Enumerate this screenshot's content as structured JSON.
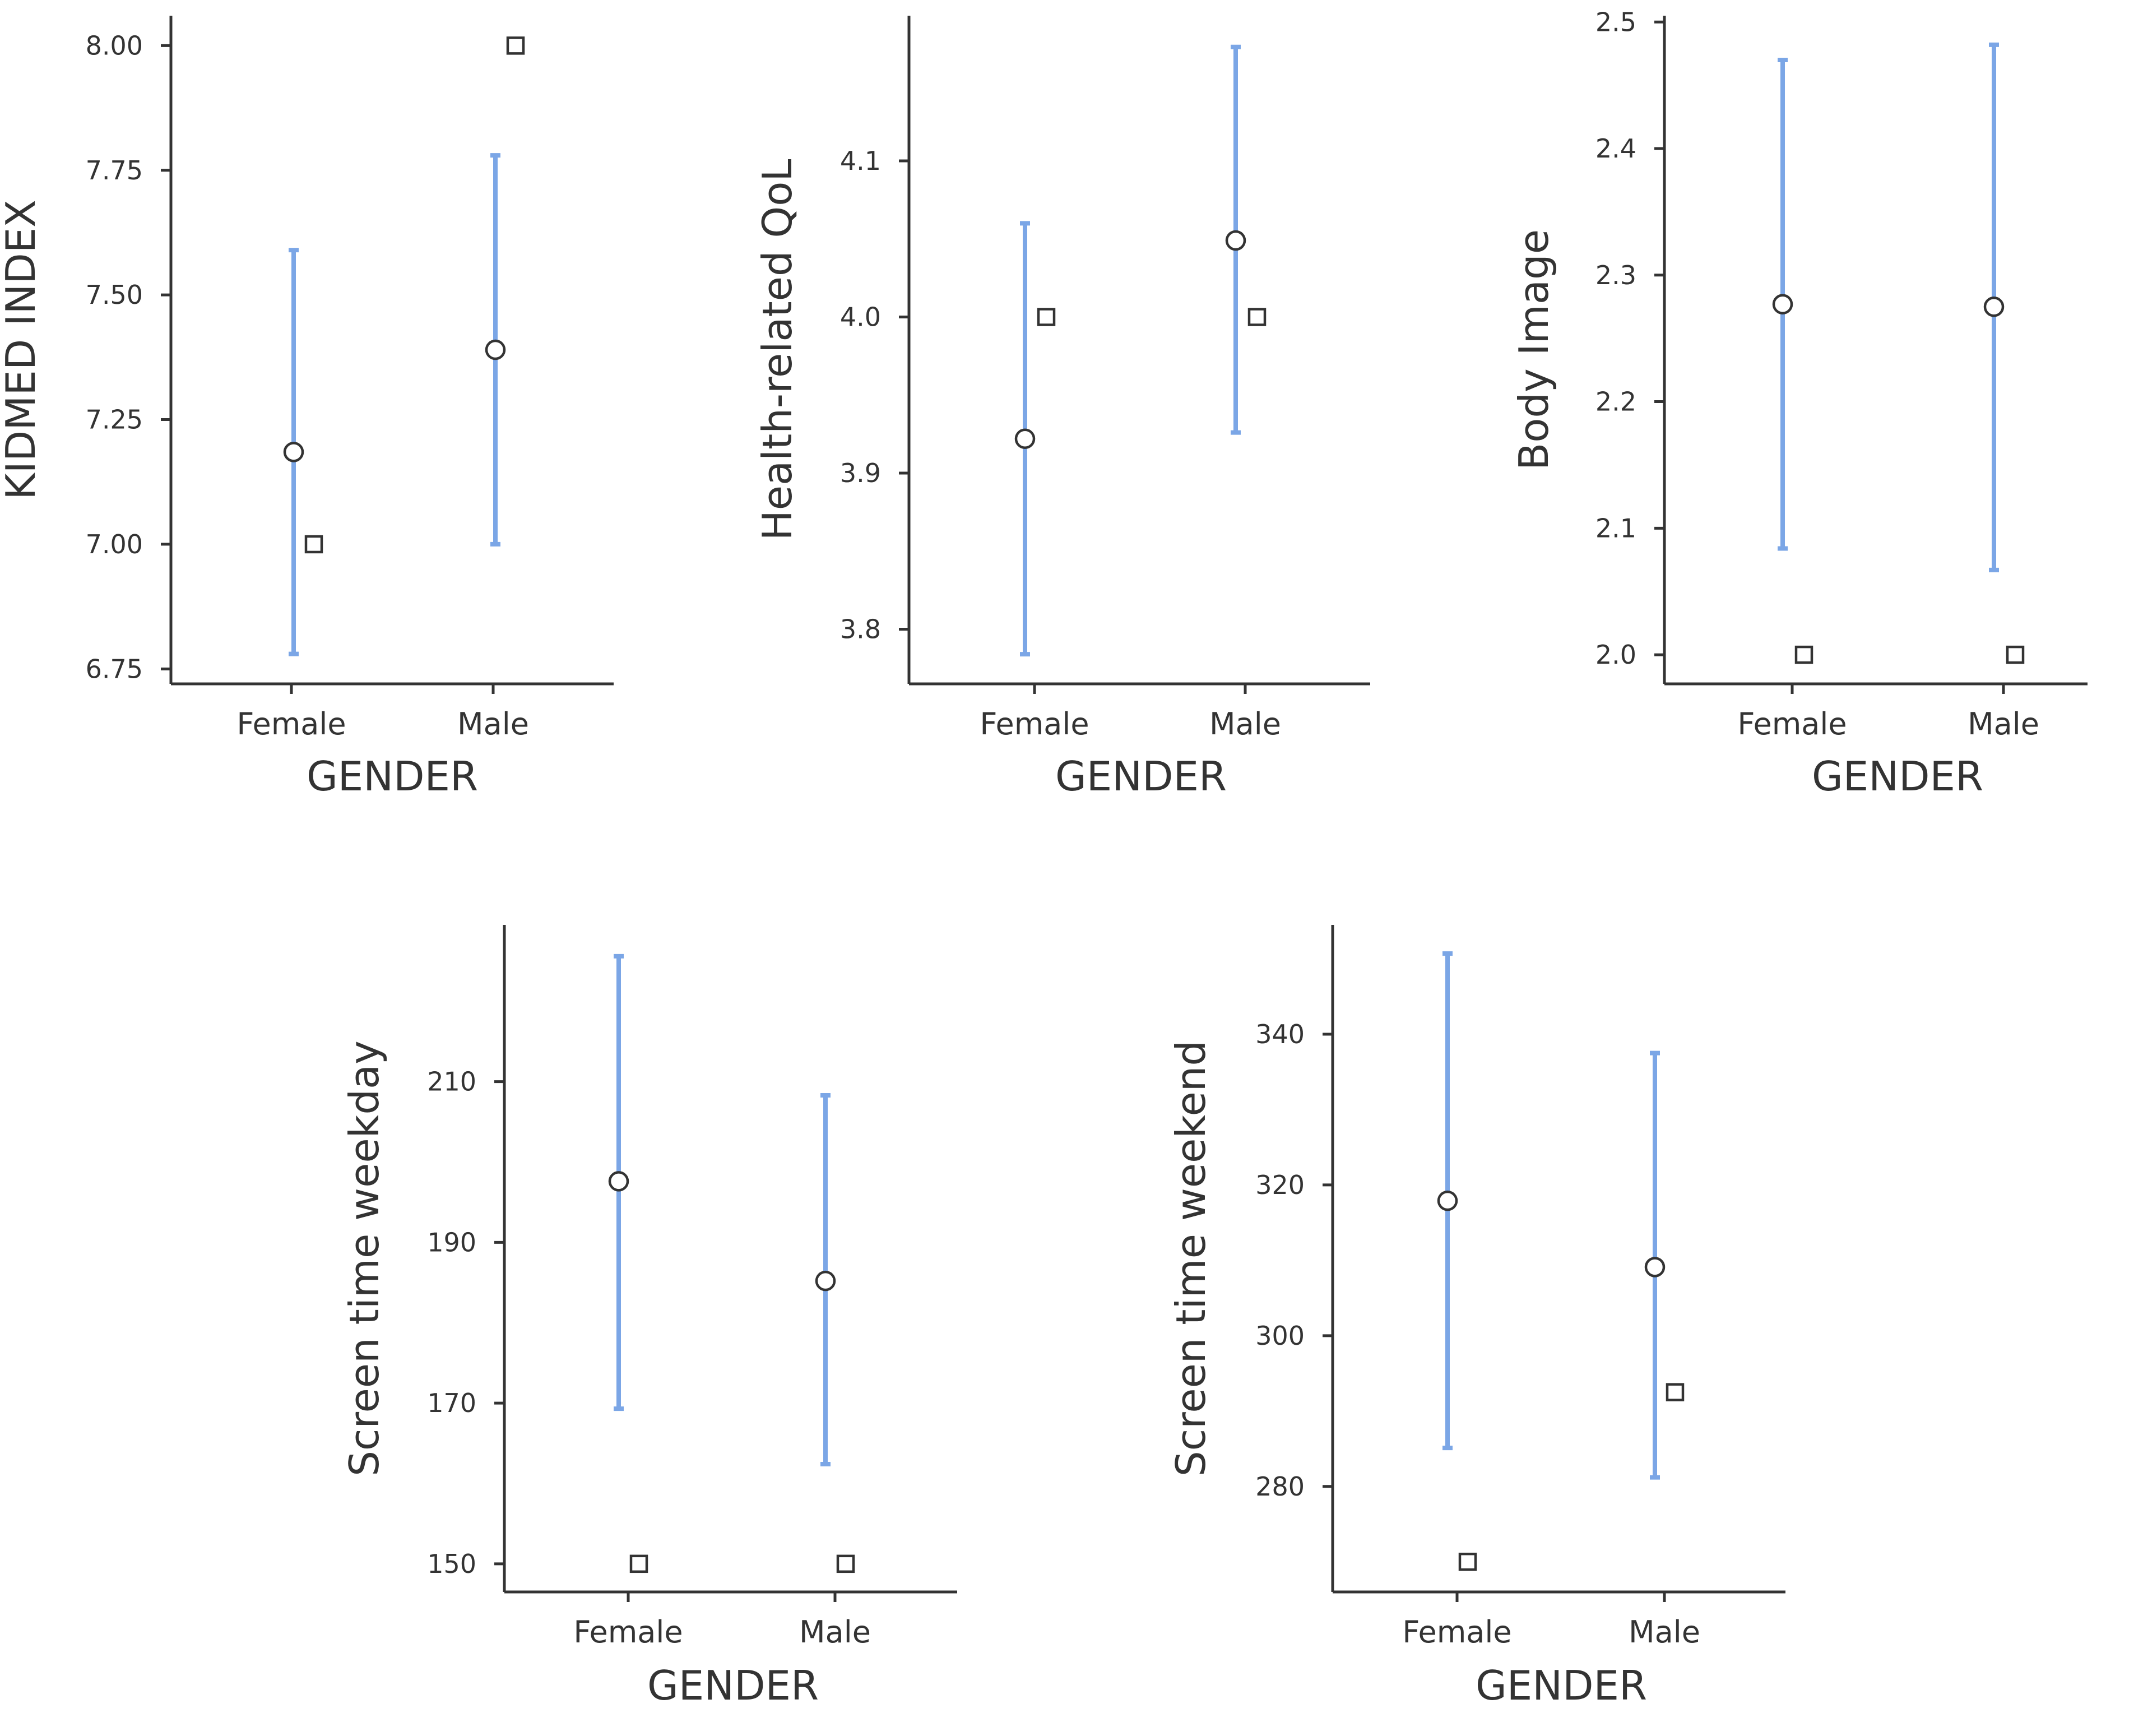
{
  "chart_data": [
    {
      "type": "scatter",
      "title": "",
      "xlabel": "GENDER",
      "ylabel": "KIDMED INDEX",
      "categories": [
        "Female",
        "Male"
      ],
      "ylim": [
        6.72,
        8.06
      ],
      "yticks": [
        6.75,
        7.0,
        7.25,
        7.5,
        7.75,
        8.0
      ],
      "tick_labels": [
        "6.75",
        "7.00",
        "7.25",
        "7.50",
        "7.75",
        "8.00"
      ],
      "series": [
        {
          "name": "mean",
          "values": [
            7.185,
            7.39
          ]
        },
        {
          "name": "ci_low",
          "values": [
            6.78,
            7.0
          ]
        },
        {
          "name": "ci_high",
          "values": [
            7.59,
            7.78
          ]
        },
        {
          "name": "median",
          "values": [
            7.0,
            8.0
          ]
        }
      ]
    },
    {
      "type": "scatter",
      "title": "",
      "xlabel": "GENDER",
      "ylabel": "Health-related QoL",
      "categories": [
        "Female",
        "Male"
      ],
      "ylim": [
        3.765,
        4.193
      ],
      "yticks": [
        3.8,
        3.9,
        4.0,
        4.1
      ],
      "tick_labels": [
        "3.8",
        "3.9",
        "4.0",
        "4.1"
      ],
      "series": [
        {
          "name": "mean",
          "values": [
            3.922,
            4.049
          ]
        },
        {
          "name": "ci_low",
          "values": [
            3.784,
            3.926
          ]
        },
        {
          "name": "ci_high",
          "values": [
            4.06,
            4.173
          ]
        },
        {
          "name": "median",
          "values": [
            4.0,
            4.0
          ]
        }
      ]
    },
    {
      "type": "scatter",
      "title": "",
      "xlabel": "GENDER",
      "ylabel": "Body Image",
      "categories": [
        "Female",
        "Male"
      ],
      "ylim": [
        1.977,
        2.505
      ],
      "yticks": [
        2.0,
        2.1,
        2.2,
        2.3,
        2.4,
        2.5
      ],
      "tick_labels": [
        "2.0",
        "2.1",
        "2.2",
        "2.3",
        "2.4",
        "2.5"
      ],
      "series": [
        {
          "name": "mean",
          "values": [
            2.277,
            2.275
          ]
        },
        {
          "name": "ci_low",
          "values": [
            2.084,
            2.067
          ]
        },
        {
          "name": "ci_high",
          "values": [
            2.47,
            2.482
          ]
        },
        {
          "name": "median",
          "values": [
            2.0,
            2.0
          ]
        }
      ]
    },
    {
      "type": "scatter",
      "title": "",
      "xlabel": "GENDER",
      "ylabel": "Screen time weekday",
      "categories": [
        "Female",
        "Male"
      ],
      "ylim": [
        146.5,
        229.5
      ],
      "yticks": [
        150,
        170,
        190,
        210
      ],
      "tick_labels": [
        "150",
        "170",
        "190",
        "210"
      ],
      "series": [
        {
          "name": "mean",
          "values": [
            197.6,
            185.2
          ]
        },
        {
          "name": "ci_low",
          "values": [
            169.3,
            162.4
          ]
        },
        {
          "name": "ci_high",
          "values": [
            225.6,
            208.3
          ]
        },
        {
          "name": "median",
          "values": [
            150,
            150
          ]
        }
      ]
    },
    {
      "type": "scatter",
      "title": "",
      "xlabel": "GENDER",
      "ylabel": "Screen time weekend",
      "categories": [
        "Female",
        "Male"
      ],
      "ylim": [
        266.0,
        354.5
      ],
      "yticks": [
        280,
        300,
        320,
        340
      ],
      "tick_labels": [
        "280",
        "300",
        "320",
        "340"
      ],
      "series": [
        {
          "name": "mean",
          "values": [
            317.9,
            309.1
          ]
        },
        {
          "name": "ci_low",
          "values": [
            285.1,
            281.2
          ]
        },
        {
          "name": "ci_high",
          "values": [
            350.7,
            337.5
          ]
        },
        {
          "name": "median",
          "values": [
            270,
            292.5
          ]
        }
      ]
    }
  ]
}
